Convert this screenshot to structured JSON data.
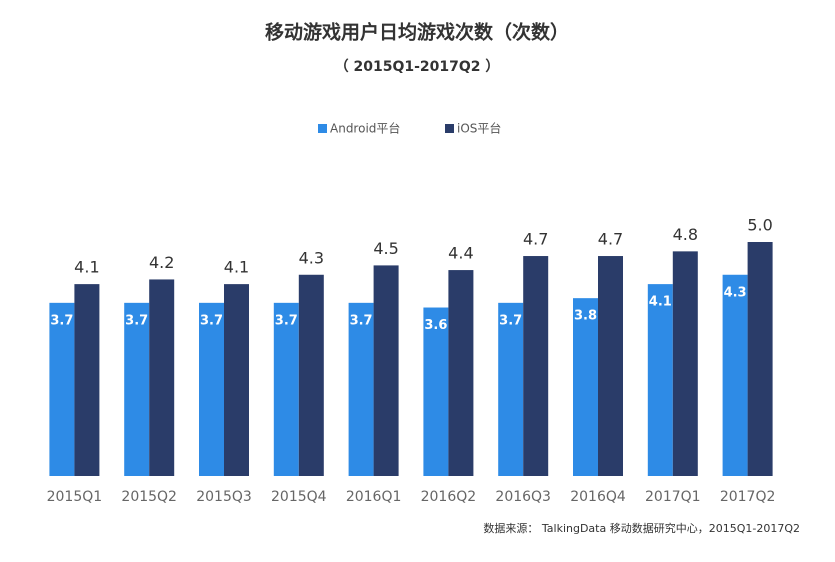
{
  "chart_data": {
    "type": "bar",
    "title": "移动游戏用户日均游戏次数（次数）",
    "subtitle": "（ 2015Q1-2017Q2 ）",
    "source": "数据来源： TalkingData 移动数据研究中心，2015Q1-2017Q2",
    "categories": [
      "2015Q1",
      "2015Q2",
      "2015Q3",
      "2015Q4",
      "2016Q1",
      "2016Q2",
      "2016Q3",
      "2016Q4",
      "2017Q1",
      "2017Q2"
    ],
    "series": [
      {
        "name": "Android平台",
        "color": "#2e8be6",
        "values": [
          3.7,
          3.7,
          3.7,
          3.7,
          3.7,
          3.6,
          3.7,
          3.8,
          4.1,
          4.3
        ]
      },
      {
        "name": "iOS平台",
        "color": "#2a3c69",
        "values": [
          4.1,
          4.2,
          4.1,
          4.3,
          4.5,
          4.4,
          4.7,
          4.7,
          4.8,
          5.0
        ],
        "value_labels": [
          "4.1",
          "4.2",
          "4.1",
          "4.3",
          "4.5",
          "4.4",
          "4.7",
          "4.7",
          "4.8",
          "5.0"
        ]
      }
    ],
    "ylim": [
      0,
      5
    ],
    "grid": false,
    "legend": "top"
  }
}
